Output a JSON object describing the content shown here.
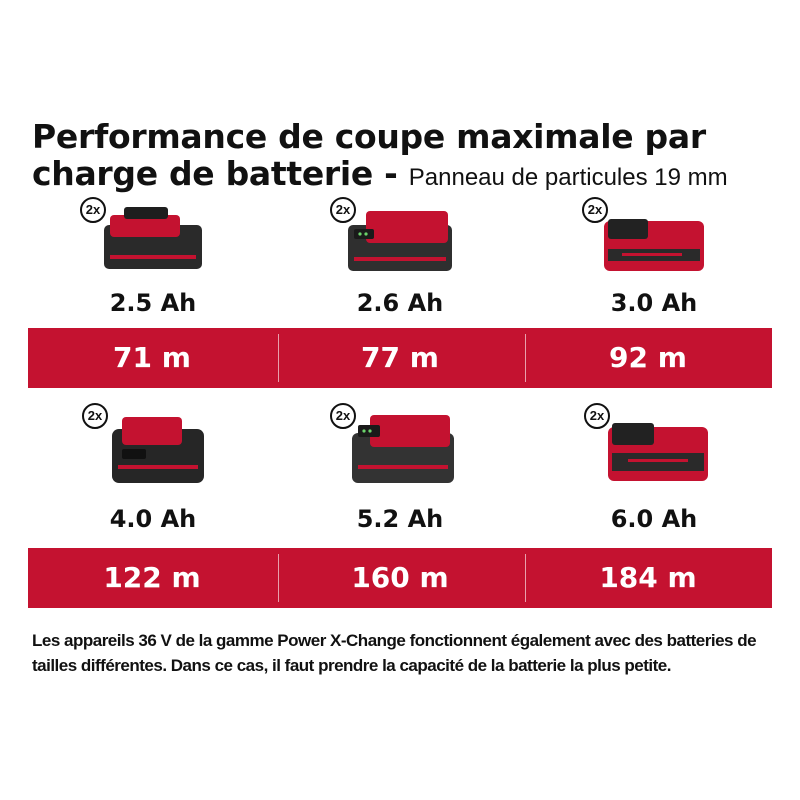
{
  "header": {
    "title_main": "Performance de coupe maximale par charge de batterie -",
    "title_sub": "Panneau de particules 19 mm"
  },
  "colors": {
    "accent": "#c41230",
    "battery_body": "#2a2a2a"
  },
  "batteries": [
    {
      "badge": "2x",
      "capacity": "2.5 Ah",
      "result": "71 m",
      "icon": "battery-2-5ah-icon"
    },
    {
      "badge": "2x",
      "capacity": "2.6 Ah",
      "result": "77 m",
      "icon": "battery-2-6ah-icon"
    },
    {
      "badge": "2x",
      "capacity": "3.0 Ah",
      "result": "92 m",
      "icon": "battery-3-0ah-icon"
    },
    {
      "badge": "2x",
      "capacity": "4.0 Ah",
      "result": "122 m",
      "icon": "battery-4-0ah-icon"
    },
    {
      "badge": "2x",
      "capacity": "5.2 Ah",
      "result": "160 m",
      "icon": "battery-5-2ah-icon"
    },
    {
      "badge": "2x",
      "capacity": "6.0 Ah",
      "result": "184 m",
      "icon": "battery-6-0ah-icon"
    }
  ],
  "footer": {
    "note": "Les appareils 36 V de la gamme Power X-Change fonctionnent également avec des batteries de tailles différentes. Dans ce cas, il faut prendre la capacité de la batterie la plus petite."
  }
}
